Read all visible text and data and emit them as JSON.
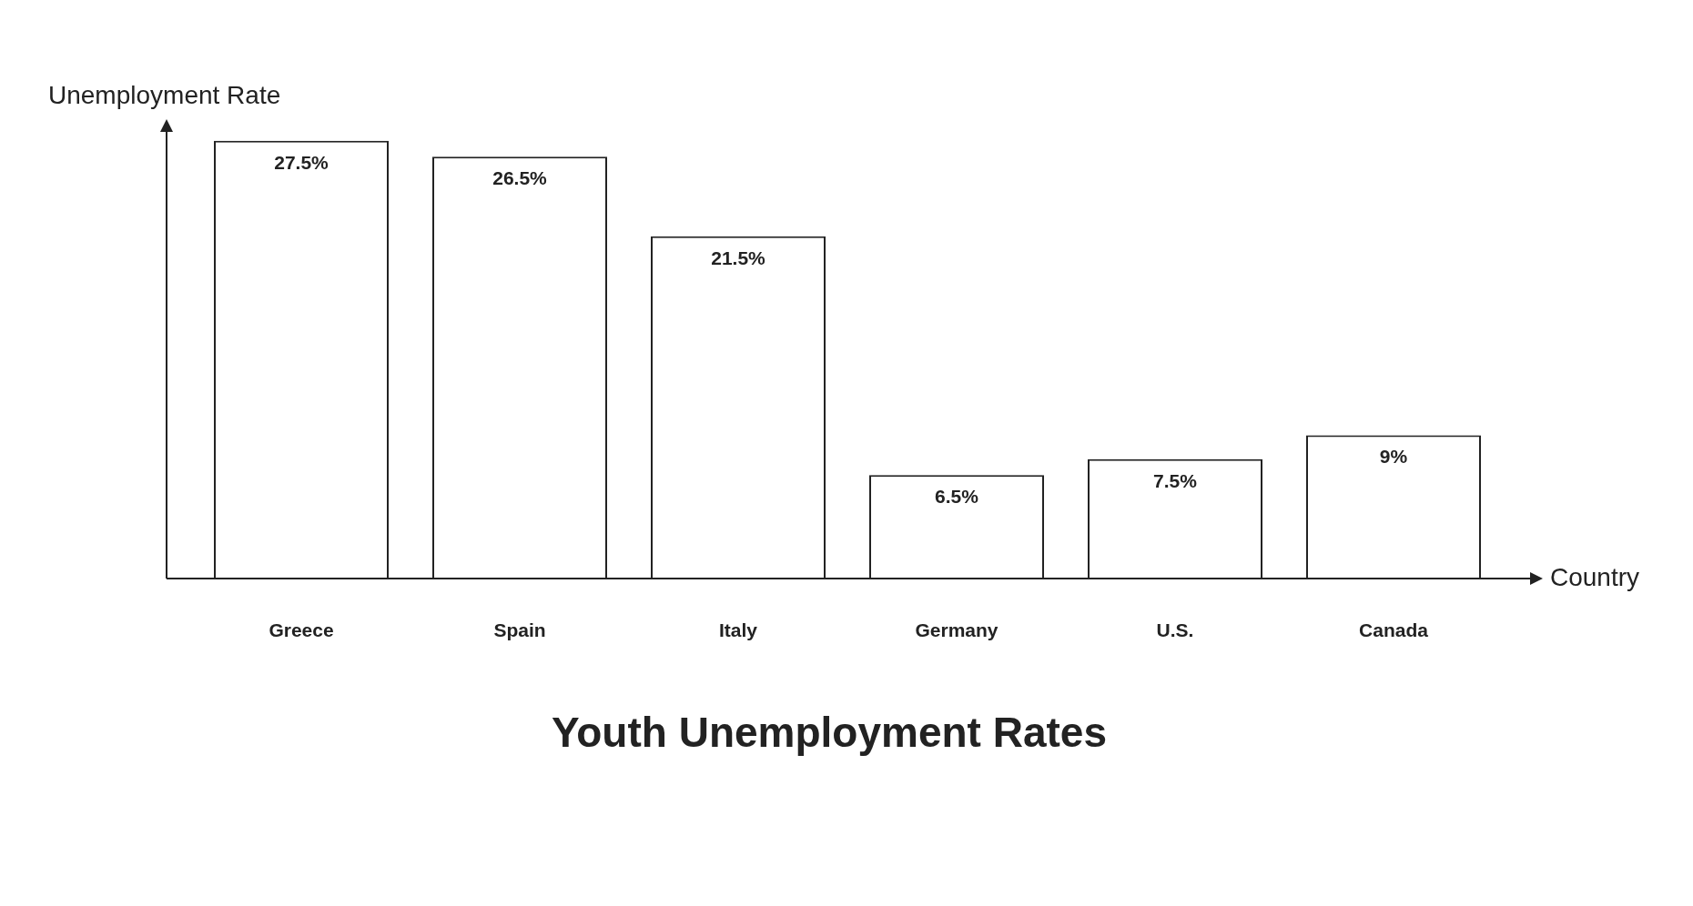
{
  "chart_data": {
    "type": "bar",
    "title": "Youth Unemployment Rates",
    "xlabel": "Country",
    "ylabel": "Unemployment Rate",
    "categories": [
      "Greece",
      "Spain",
      "Italy",
      "Germany",
      "U.S.",
      "Canada"
    ],
    "values": [
      27.5,
      26.5,
      21.5,
      6.5,
      7.5,
      9
    ],
    "value_labels": [
      "27.5%",
      "26.5%",
      "21.5%",
      "6.5%",
      "7.5%",
      "9%"
    ],
    "color": "#ffffff",
    "legend": false
  }
}
